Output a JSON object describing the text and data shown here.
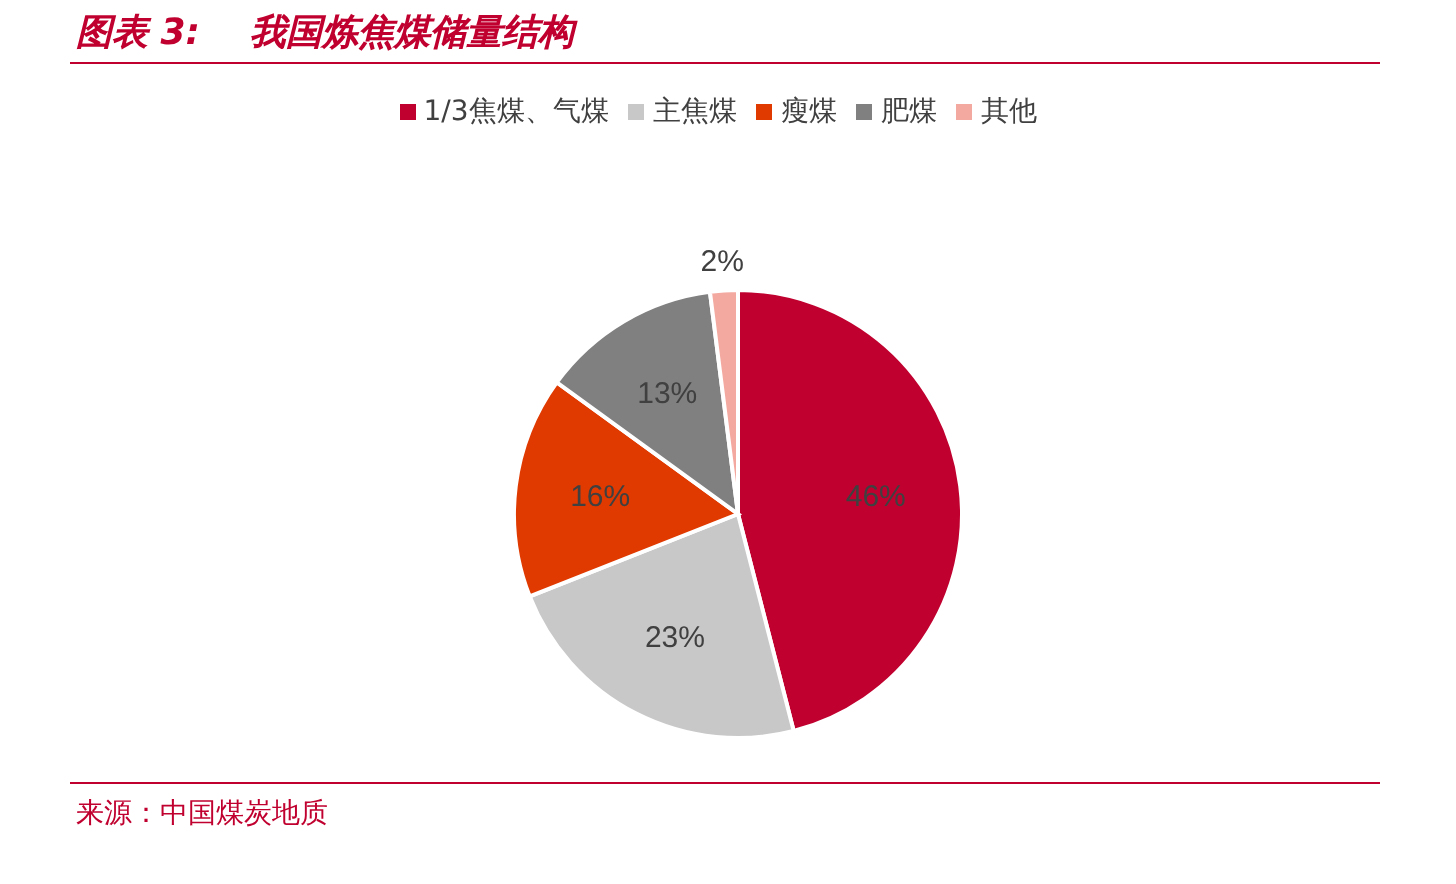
{
  "chart_data": {
    "type": "pie",
    "title": "图表 3:    我国炼焦煤储量结构",
    "categories": [
      "1/3焦煤、气煤",
      "主焦煤",
      "瘦煤",
      "肥煤",
      "其他"
    ],
    "values": [
      46,
      23,
      16,
      13,
      2
    ],
    "colors": [
      "#c0002f",
      "#c8c8c8",
      "#e03a00",
      "#808080",
      "#f4a9a0"
    ],
    "value_labels": [
      "46%",
      "23%",
      "16%",
      "13%",
      "2%"
    ],
    "legend": "top",
    "annotations": [
      "来源：中国煤炭地质"
    ]
  }
}
